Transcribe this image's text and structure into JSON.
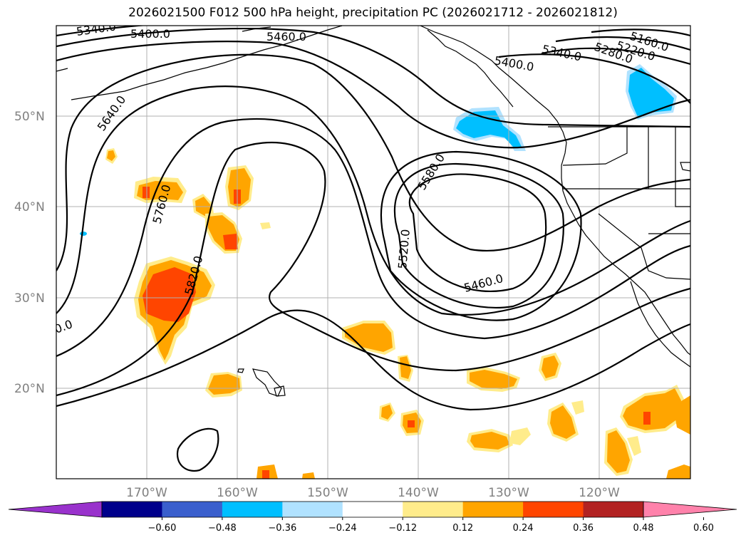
{
  "title": "2026021500 F012 500 hPa height, precipitation PC (2026021712 - 2026021812)",
  "lat_labels": [
    "50°N",
    "40°N",
    "30°N",
    "20°N"
  ],
  "lon_labels": [
    "170°W",
    "160°W",
    "150°W",
    "140°W",
    "130°W",
    "120°W"
  ],
  "contour_labels": [
    "5340.0",
    "5400.0",
    "5460.0",
    "5160.0",
    "5220.0",
    "5280.0",
    "5340.0",
    "5400.0",
    "5640.0",
    "5760.0",
    "5820.0",
    "5580.0",
    "5520.0",
    "5460.0",
    "0.0"
  ],
  "colorbar": {
    "ticks": [
      "−0.60",
      "−0.48",
      "−0.36",
      "−0.24",
      "−0.12",
      "0.12",
      "0.24",
      "0.36",
      "0.48",
      "0.60"
    ],
    "colors": [
      "#9932cc",
      "#00008b",
      "#3a5fcd",
      "#00bfff",
      "#b0e2ff",
      "#ffffff",
      "#ffec8b",
      "#ffa500",
      "#ff4500",
      "#b22222",
      "#ff82ab"
    ]
  }
}
